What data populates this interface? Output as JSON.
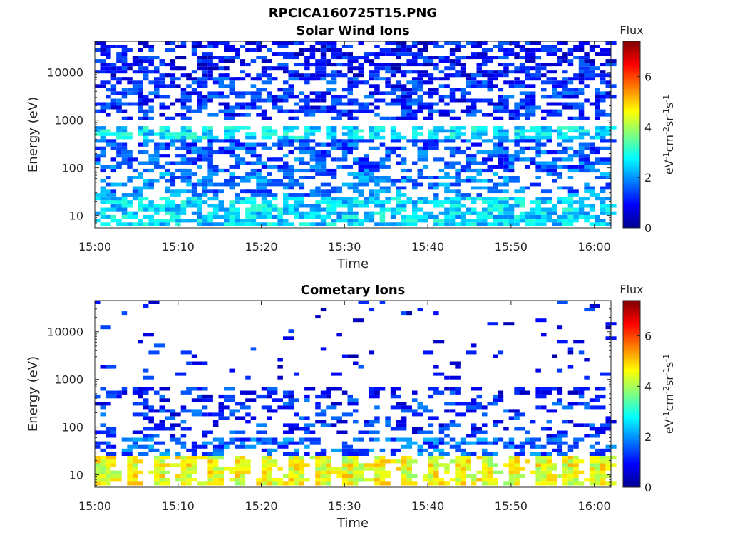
{
  "figure_title": "RPCICA160725T15.PNG",
  "chart_data": [
    {
      "type": "heatmap",
      "title": "Solar Wind Ions",
      "xlabel": "Time",
      "ylabel": "Energy (eV)",
      "x_range": [
        "15:00",
        "16:02"
      ],
      "x_ticks": [
        "15:00",
        "15:10",
        "15:20",
        "15:30",
        "15:40",
        "15:50",
        "16:00"
      ],
      "y_scale": "log",
      "y_range": [
        5.5,
        45000
      ],
      "y_ticks": [
        "10",
        "100",
        "1000",
        "10000"
      ],
      "colorbar": {
        "title": "Flux",
        "label": "eV-1cm-2sr-1s-1",
        "range": [
          0,
          7.4
        ],
        "ticks": [
          "0",
          "2",
          "4",
          "6"
        ],
        "colormap": "jet"
      },
      "bands": [
        {
          "energy_range": [
            8000,
            45000
          ],
          "flux_typical": 1.0,
          "coverage": 0.45,
          "pattern": "sparse"
        },
        {
          "energy_range": [
            1000,
            8000
          ],
          "flux_typical": 1.2,
          "coverage": 0.42,
          "pattern": "sparse"
        },
        {
          "energy_range": [
            400,
            750
          ],
          "flux_typical": 2.6,
          "coverage": 0.85,
          "pattern": "periodic bursts ~2.5 min"
        },
        {
          "energy_range": [
            80,
            400
          ],
          "flux_typical": 1.5,
          "coverage": 0.4,
          "pattern": "sparse"
        },
        {
          "energy_range": [
            25,
            80
          ],
          "flux_typical": 1.8,
          "coverage": 0.35,
          "pattern": "sparse"
        },
        {
          "energy_range": [
            6,
            25
          ],
          "flux_typical": 2.5,
          "coverage": 0.6,
          "pattern": "patchy"
        }
      ]
    },
    {
      "type": "heatmap",
      "title": "Cometary Ions",
      "xlabel": "Time",
      "ylabel": "Energy (eV)",
      "x_range": [
        "15:00",
        "16:02"
      ],
      "x_ticks": [
        "15:00",
        "15:10",
        "15:20",
        "15:30",
        "15:40",
        "15:50",
        "16:00"
      ],
      "y_scale": "log",
      "y_range": [
        5.5,
        45000
      ],
      "y_ticks": [
        "10",
        "100",
        "1000",
        "10000"
      ],
      "colorbar": {
        "title": "Flux",
        "label": "eV-1cm-2sr-1s-1",
        "range": [
          0,
          7.4
        ],
        "ticks": [
          "0",
          "2",
          "4",
          "6"
        ],
        "colormap": "jet"
      },
      "bands": [
        {
          "energy_range": [
            1000,
            45000
          ],
          "flux_typical": 0.9,
          "coverage": 0.03,
          "pattern": "rare"
        },
        {
          "energy_range": [
            400,
            700
          ],
          "flux_typical": 1.1,
          "coverage": 0.5,
          "pattern": "periodic"
        },
        {
          "energy_range": [
            60,
            400
          ],
          "flux_typical": 1.2,
          "coverage": 0.22,
          "pattern": "sparse"
        },
        {
          "energy_range": [
            25,
            60
          ],
          "flux_typical": 1.6,
          "coverage": 0.35,
          "pattern": "sparse"
        },
        {
          "energy_range": [
            6,
            25
          ],
          "flux_typical": 4.5,
          "coverage": 0.9,
          "pattern": "periodic bursts ~3.3 min"
        }
      ]
    }
  ]
}
